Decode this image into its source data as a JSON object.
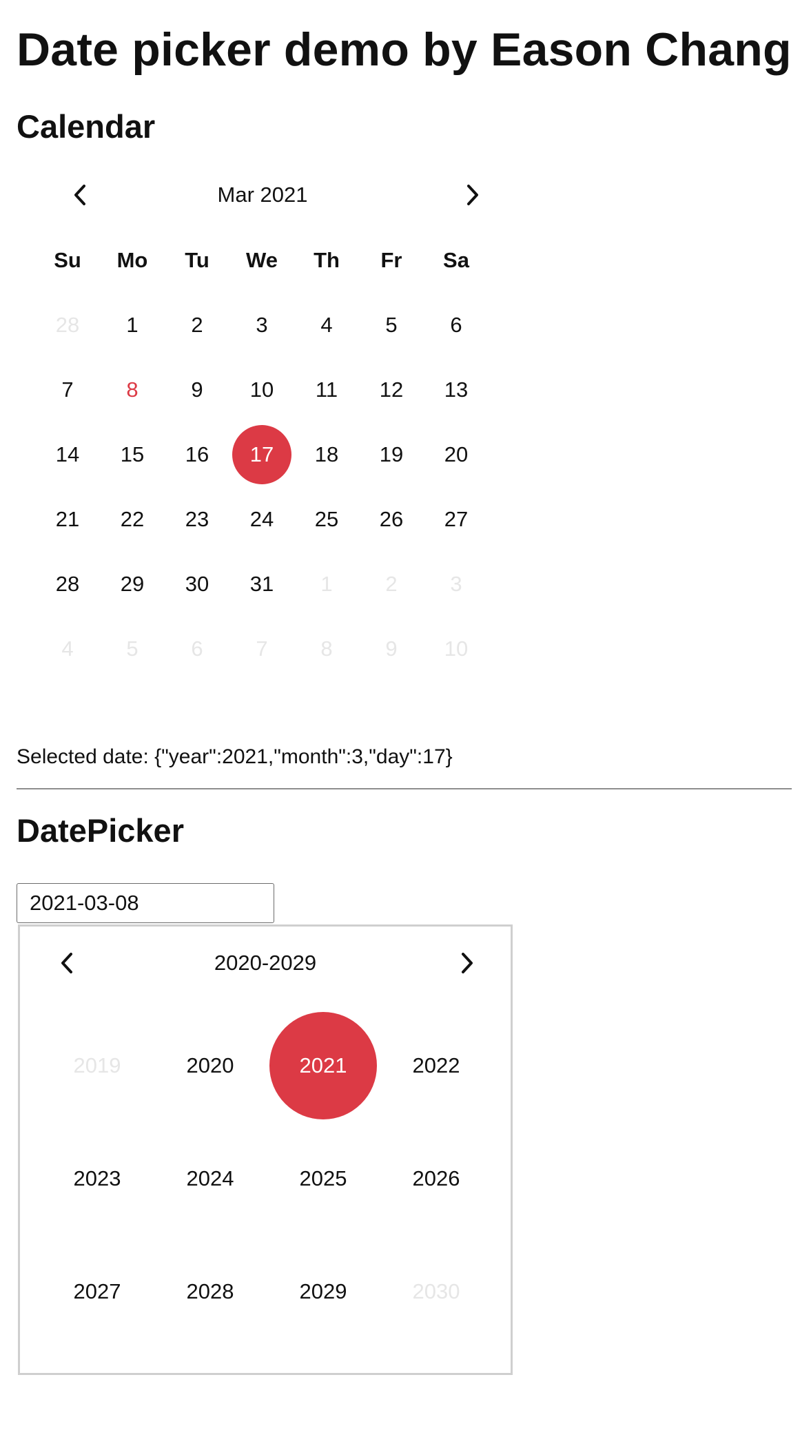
{
  "page": {
    "title": "Date picker demo by Eason Chang"
  },
  "calendar": {
    "section_title": "Calendar",
    "month_label": "Mar 2021",
    "weekdays": [
      "Su",
      "Mo",
      "Tu",
      "We",
      "Th",
      "Fr",
      "Sa"
    ],
    "days": [
      {
        "d": "28",
        "state": "muted"
      },
      {
        "d": "1"
      },
      {
        "d": "2"
      },
      {
        "d": "3"
      },
      {
        "d": "4"
      },
      {
        "d": "5"
      },
      {
        "d": "6"
      },
      {
        "d": "7"
      },
      {
        "d": "8",
        "state": "today"
      },
      {
        "d": "9"
      },
      {
        "d": "10"
      },
      {
        "d": "11"
      },
      {
        "d": "12"
      },
      {
        "d": "13"
      },
      {
        "d": "14"
      },
      {
        "d": "15"
      },
      {
        "d": "16"
      },
      {
        "d": "17",
        "state": "selected"
      },
      {
        "d": "18"
      },
      {
        "d": "19"
      },
      {
        "d": "20"
      },
      {
        "d": "21"
      },
      {
        "d": "22"
      },
      {
        "d": "23"
      },
      {
        "d": "24"
      },
      {
        "d": "25"
      },
      {
        "d": "26"
      },
      {
        "d": "27"
      },
      {
        "d": "28"
      },
      {
        "d": "29"
      },
      {
        "d": "30"
      },
      {
        "d": "31"
      },
      {
        "d": "1",
        "state": "muted"
      },
      {
        "d": "2",
        "state": "muted"
      },
      {
        "d": "3",
        "state": "muted"
      },
      {
        "d": "4",
        "state": "muted"
      },
      {
        "d": "5",
        "state": "muted"
      },
      {
        "d": "6",
        "state": "muted"
      },
      {
        "d": "7",
        "state": "muted"
      },
      {
        "d": "8",
        "state": "muted"
      },
      {
        "d": "9",
        "state": "muted"
      },
      {
        "d": "10",
        "state": "muted"
      }
    ],
    "selected_text": "Selected date: {\"year\":2021,\"month\":3,\"day\":17}"
  },
  "datepicker": {
    "section_title": "DatePicker",
    "input_value": "2021-03-08",
    "range_label": "2020-2029",
    "years": [
      {
        "y": "2019",
        "state": "muted"
      },
      {
        "y": "2020"
      },
      {
        "y": "2021",
        "state": "selected"
      },
      {
        "y": "2022"
      },
      {
        "y": "2023"
      },
      {
        "y": "2024"
      },
      {
        "y": "2025"
      },
      {
        "y": "2026"
      },
      {
        "y": "2027"
      },
      {
        "y": "2028"
      },
      {
        "y": "2029"
      },
      {
        "y": "2030",
        "state": "muted"
      }
    ]
  },
  "colors": {
    "accent": "#dc3a45",
    "muted_text": "#e6e6e6",
    "divider": "#8d8d8d"
  },
  "icons": {
    "prev": "chevron-left-icon",
    "next": "chevron-right-icon"
  }
}
